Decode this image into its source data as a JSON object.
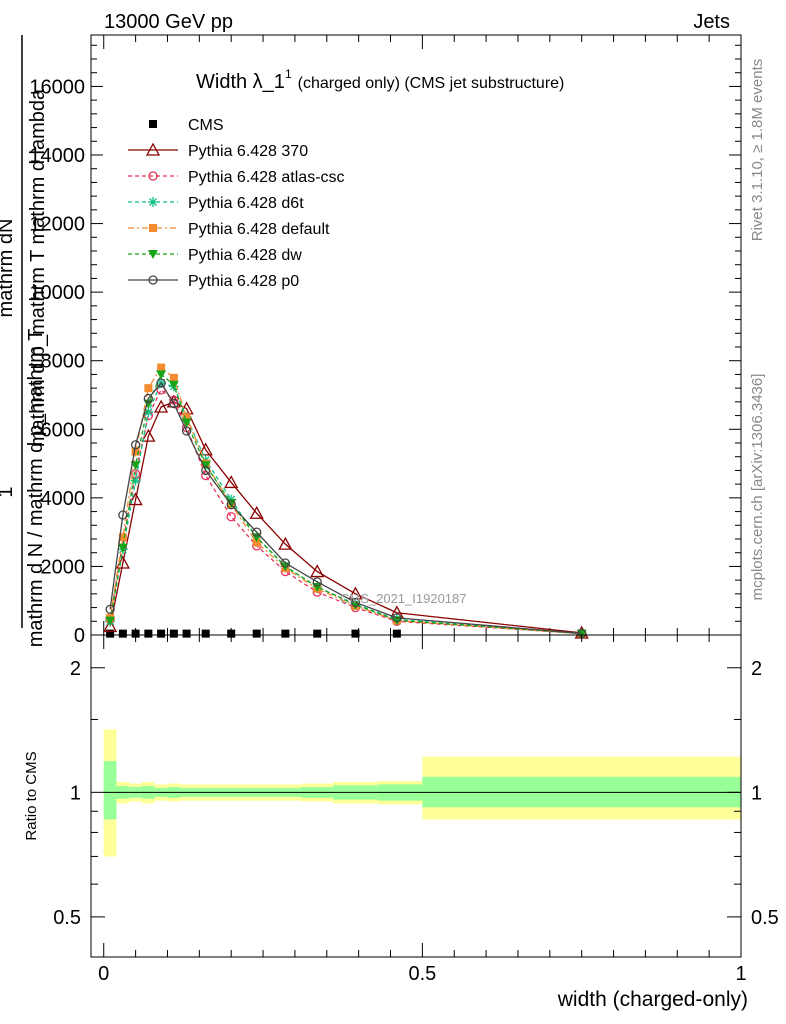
{
  "header": {
    "left": "13000 GeV pp",
    "right": "Jets"
  },
  "side_labels": {
    "rivet": "Rivet 3.1.10, ≥ 1.8M events",
    "mcplots": "mcplots.cern.ch [arXiv:1306.3436]"
  },
  "chart_data": [
    {
      "type": "line",
      "title": "Width λ_1",
      "title_sup": "1",
      "title_suffix": "(charged only) (CMS jet substructure)",
      "watermark": "CMS_2021_I1920187",
      "ylabel_top": "mathrm dN",
      "ylabel_main": "mathrm d p_mathrm T mathrm d lambda",
      "ylabel_left_top": "1",
      "ylabel_left_main": "mathrm d N / mathrm d p_mathrm T",
      "xlim": [
        -0.02,
        1.0
      ],
      "ylim": [
        0,
        17500
      ],
      "y_ticks": [
        0,
        2000,
        4000,
        6000,
        8000,
        10000,
        12000,
        14000,
        16000
      ],
      "y_tick_labels": [
        "0",
        "2000",
        "4000",
        "6000",
        "8000",
        "10000",
        "12000",
        "14000",
        "16000"
      ],
      "legend": {
        "placement": "top-left"
      },
      "series": [
        {
          "name": "CMS",
          "color": "#000000",
          "marker": "square-filled",
          "line": "none",
          "x": [
            0.01,
            0.03,
            0.05,
            0.07,
            0.09,
            0.11,
            0.13,
            0.16,
            0.2,
            0.24,
            0.285,
            0.335,
            0.395,
            0.46
          ],
          "y": [
            40,
            40,
            40,
            40,
            40,
            40,
            40,
            40,
            40,
            40,
            40,
            40,
            40,
            40
          ]
        },
        {
          "name": "Pythia 6.428 370",
          "color": "#8b0000",
          "marker": "triangle-open",
          "line": "solid",
          "x": [
            0.01,
            0.03,
            0.05,
            0.07,
            0.09,
            0.11,
            0.13,
            0.16,
            0.2,
            0.24,
            0.285,
            0.335,
            0.395,
            0.46,
            0.75
          ],
          "y": [
            250,
            2100,
            3950,
            5800,
            6650,
            6800,
            6600,
            5400,
            4450,
            3550,
            2650,
            1850,
            1200,
            650,
            60
          ]
        },
        {
          "name": "Pythia 6.428 atlas-csc",
          "color": "#e8315a",
          "marker": "circle-open",
          "line": "dashed",
          "x": [
            0.01,
            0.03,
            0.05,
            0.07,
            0.09,
            0.11,
            0.13,
            0.16,
            0.2,
            0.24,
            0.285,
            0.335,
            0.395,
            0.46,
            0.75
          ],
          "y": [
            450,
            2700,
            4700,
            6400,
            7150,
            6850,
            6050,
            4650,
            3450,
            2600,
            1850,
            1250,
            800,
            400,
            40
          ]
        },
        {
          "name": "Pythia 6.428 d6t",
          "color": "#13c08a",
          "marker": "star",
          "line": "dashed",
          "x": [
            0.01,
            0.03,
            0.05,
            0.07,
            0.09,
            0.11,
            0.13,
            0.16,
            0.2,
            0.24,
            0.285,
            0.335,
            0.395,
            0.46,
            0.75
          ],
          "y": [
            400,
            2500,
            4500,
            6500,
            7350,
            7250,
            6350,
            5100,
            3950,
            2850,
            2000,
            1400,
            900,
            450,
            45
          ]
        },
        {
          "name": "Pythia 6.428 default",
          "color": "#f58b2f",
          "marker": "square-filled",
          "line": "dashdot",
          "x": [
            0.01,
            0.03,
            0.05,
            0.07,
            0.09,
            0.11,
            0.13,
            0.16,
            0.2,
            0.24,
            0.285,
            0.335,
            0.395,
            0.46,
            0.75
          ],
          "y": [
            500,
            2850,
            5350,
            7200,
            7800,
            7500,
            6350,
            5000,
            3800,
            2700,
            1950,
            1350,
            850,
            420,
            40
          ]
        },
        {
          "name": "Pythia 6.428 dw",
          "color": "#18a418",
          "marker": "triangle-down-filled",
          "line": "dashed",
          "x": [
            0.01,
            0.03,
            0.05,
            0.07,
            0.09,
            0.11,
            0.13,
            0.16,
            0.2,
            0.24,
            0.285,
            0.335,
            0.395,
            0.46,
            0.75
          ],
          "y": [
            420,
            2550,
            4950,
            6750,
            7600,
            7300,
            6200,
            4950,
            3850,
            2850,
            2000,
            1400,
            880,
            430,
            42
          ]
        },
        {
          "name": "Pythia 6.428 p0",
          "color": "#454545",
          "marker": "circle-open",
          "line": "solid",
          "x": [
            0.01,
            0.03,
            0.05,
            0.07,
            0.09,
            0.11,
            0.13,
            0.16,
            0.2,
            0.24,
            0.285,
            0.335,
            0.395,
            0.46,
            0.75
          ],
          "y": [
            750,
            3500,
            5550,
            6900,
            7350,
            6750,
            5950,
            4800,
            3800,
            3000,
            2100,
            1550,
            950,
            500,
            45
          ]
        }
      ]
    },
    {
      "type": "area",
      "ylabel": "Ratio to CMS",
      "xlabel": "width (charged-only)",
      "xlim": [
        -0.02,
        1.0
      ],
      "ylim": [
        0.4,
        2.4
      ],
      "y_scale": "log",
      "y_ticks": [
        0.5,
        1,
        2
      ],
      "y_tick_labels": [
        "0.5",
        "1",
        "2"
      ],
      "x_ticks": [
        0,
        0.5,
        1
      ],
      "x_tick_labels": [
        "0",
        "0.5",
        "1"
      ],
      "bands": {
        "bin_edges": [
          0.0,
          0.02,
          0.04,
          0.06,
          0.08,
          0.1,
          0.12,
          0.14,
          0.18,
          0.22,
          0.26,
          0.31,
          0.36,
          0.43,
          0.5,
          1.0
        ],
        "stat": {
          "color": "#99ff99",
          "low": [
            0.86,
            0.965,
            0.97,
            0.965,
            0.975,
            0.97,
            0.975,
            0.975,
            0.975,
            0.975,
            0.975,
            0.97,
            0.96,
            0.955,
            0.92
          ],
          "high": [
            1.19,
            1.035,
            1.03,
            1.035,
            1.025,
            1.03,
            1.025,
            1.025,
            1.025,
            1.025,
            1.025,
            1.03,
            1.04,
            1.045,
            1.09
          ]
        },
        "syst": {
          "color": "#ffff99",
          "low": [
            0.7,
            0.94,
            0.95,
            0.94,
            0.955,
            0.95,
            0.955,
            0.955,
            0.955,
            0.955,
            0.955,
            0.95,
            0.94,
            0.935,
            0.86
          ],
          "high": [
            1.42,
            1.06,
            1.05,
            1.06,
            1.045,
            1.05,
            1.045,
            1.045,
            1.045,
            1.045,
            1.045,
            1.05,
            1.06,
            1.065,
            1.22
          ]
        }
      }
    }
  ]
}
